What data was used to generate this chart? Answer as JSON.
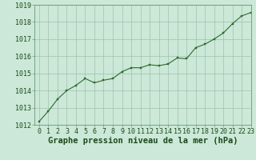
{
  "x": [
    0,
    1,
    2,
    3,
    4,
    5,
    6,
    7,
    8,
    9,
    10,
    11,
    12,
    13,
    14,
    15,
    16,
    17,
    18,
    19,
    20,
    21,
    22,
    23
  ],
  "y": [
    1012.2,
    1012.8,
    1013.5,
    1014.0,
    1014.3,
    1014.7,
    1014.45,
    1014.6,
    1014.7,
    1015.1,
    1015.33,
    1015.33,
    1015.5,
    1015.45,
    1015.55,
    1015.9,
    1015.85,
    1016.5,
    1016.7,
    1017.0,
    1017.35,
    1017.9,
    1018.35,
    1018.55
  ],
  "line_color": "#2d6a2d",
  "marker_color": "#2d6a2d",
  "bg_color": "#cce8d8",
  "plot_bg_color": "#cce8d8",
  "grid_color": "#99c4aa",
  "spine_color": "#669977",
  "xlabel": "Graphe pression niveau de la mer (hPa)",
  "xlabel_color": "#1a4a1a",
  "ylim": [
    1012,
    1019
  ],
  "xlim": [
    -0.5,
    23
  ],
  "yticks": [
    1012,
    1013,
    1014,
    1015,
    1016,
    1017,
    1018,
    1019
  ],
  "xticks": [
    0,
    1,
    2,
    3,
    4,
    5,
    6,
    7,
    8,
    9,
    10,
    11,
    12,
    13,
    14,
    15,
    16,
    17,
    18,
    19,
    20,
    21,
    22,
    23
  ],
  "tick_fontsize": 6.0,
  "xlabel_fontsize": 7.5
}
